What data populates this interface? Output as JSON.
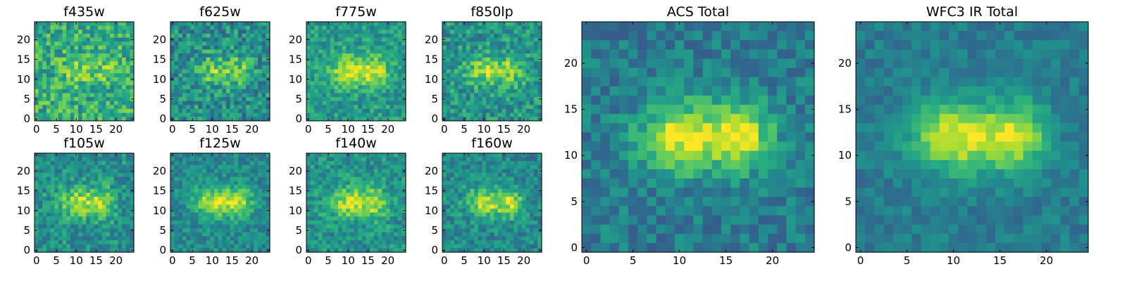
{
  "chart_data": [
    {
      "type": "heatmap",
      "title": "f435w",
      "size": 25,
      "seed": 11,
      "noise": 0.42,
      "base": 0.62,
      "blob": 0.16,
      "xticks": [
        0,
        5,
        10,
        15,
        20
      ],
      "yticks": [
        0,
        5,
        10,
        15,
        20
      ],
      "xtick_labels": [
        "0",
        "5",
        "10",
        "15",
        "20"
      ],
      "ytick_labels": [
        "0",
        "5",
        "10",
        "15",
        "20"
      ]
    },
    {
      "type": "heatmap",
      "title": "f625w",
      "size": 25,
      "seed": 23,
      "noise": 0.4,
      "base": 0.5,
      "blob": 0.3,
      "xticks": [
        0,
        5,
        10,
        15,
        20
      ],
      "yticks": [
        0,
        5,
        10,
        15,
        20
      ],
      "xtick_labels": [
        "0",
        "5",
        "10",
        "15",
        "20"
      ],
      "ytick_labels": [
        "0",
        "5",
        "10",
        "15",
        "20"
      ]
    },
    {
      "type": "heatmap",
      "title": "f775w",
      "size": 25,
      "seed": 37,
      "noise": 0.3,
      "base": 0.55,
      "blob": 0.4,
      "xticks": [
        0,
        5,
        10,
        15,
        20
      ],
      "yticks": [
        0,
        5,
        10,
        15,
        20
      ],
      "xtick_labels": [
        "0",
        "5",
        "10",
        "15",
        "20"
      ],
      "ytick_labels": [
        "0",
        "5",
        "10",
        "15",
        "20"
      ]
    },
    {
      "type": "heatmap",
      "title": "f850lp",
      "size": 25,
      "seed": 41,
      "noise": 0.36,
      "base": 0.52,
      "blob": 0.34,
      "xticks": [
        0,
        5,
        10,
        15,
        20
      ],
      "yticks": [
        0,
        5,
        10,
        15,
        20
      ],
      "xtick_labels": [
        "0",
        "5",
        "10",
        "15",
        "20"
      ],
      "ytick_labels": [
        "0",
        "5",
        "10",
        "15",
        "20"
      ]
    },
    {
      "type": "heatmap",
      "title": "f105w",
      "size": 25,
      "seed": 53,
      "noise": 0.32,
      "base": 0.5,
      "blob": 0.38,
      "xticks": [
        0,
        5,
        10,
        15,
        20
      ],
      "yticks": [
        0,
        5,
        10,
        15,
        20
      ],
      "xtick_labels": [
        "0",
        "5",
        "10",
        "15",
        "20"
      ],
      "ytick_labels": [
        "0",
        "5",
        "10",
        "15",
        "20"
      ]
    },
    {
      "type": "heatmap",
      "title": "f125w",
      "size": 25,
      "seed": 67,
      "noise": 0.26,
      "base": 0.48,
      "blob": 0.45,
      "xticks": [
        0,
        5,
        10,
        15,
        20
      ],
      "yticks": [
        0,
        5,
        10,
        15,
        20
      ],
      "xtick_labels": [
        "0",
        "5",
        "10",
        "15",
        "20"
      ],
      "ytick_labels": [
        "0",
        "5",
        "10",
        "15",
        "20"
      ]
    },
    {
      "type": "heatmap",
      "title": "f140w",
      "size": 25,
      "seed": 71,
      "noise": 0.3,
      "base": 0.52,
      "blob": 0.4,
      "xticks": [
        0,
        5,
        10,
        15,
        20
      ],
      "yticks": [
        0,
        5,
        10,
        15,
        20
      ],
      "xtick_labels": [
        "0",
        "5",
        "10",
        "15",
        "20"
      ],
      "ytick_labels": [
        "0",
        "5",
        "10",
        "15",
        "20"
      ]
    },
    {
      "type": "heatmap",
      "title": "f160w",
      "size": 25,
      "seed": 83,
      "noise": 0.3,
      "base": 0.48,
      "blob": 0.42,
      "xticks": [
        0,
        5,
        10,
        15,
        20
      ],
      "yticks": [
        0,
        5,
        10,
        15,
        20
      ],
      "xtick_labels": [
        "0",
        "5",
        "10",
        "15",
        "20"
      ],
      "ytick_labels": [
        "0",
        "5",
        "10",
        "15",
        "20"
      ]
    },
    {
      "type": "heatmap",
      "title": "ACS Total",
      "size": 25,
      "seed": 97,
      "noise": 0.26,
      "base": 0.42,
      "blob": 0.55,
      "xticks": [
        0,
        5,
        10,
        15,
        20
      ],
      "yticks": [
        0,
        5,
        10,
        15,
        20
      ],
      "xtick_labels": [
        "0",
        "5",
        "10",
        "15",
        "20"
      ],
      "ytick_labels": [
        "0",
        "5",
        "10",
        "15",
        "20"
      ]
    },
    {
      "type": "heatmap",
      "title": "WFC3 IR Total",
      "size": 25,
      "seed": 101,
      "noise": 0.18,
      "base": 0.42,
      "blob": 0.55,
      "xticks": [
        0,
        5,
        10,
        15,
        20
      ],
      "yticks": [
        0,
        5,
        10,
        15,
        20
      ],
      "xtick_labels": [
        "0",
        "5",
        "10",
        "15",
        "20"
      ],
      "ytick_labels": [
        "0",
        "5",
        "10",
        "15",
        "20"
      ]
    }
  ]
}
